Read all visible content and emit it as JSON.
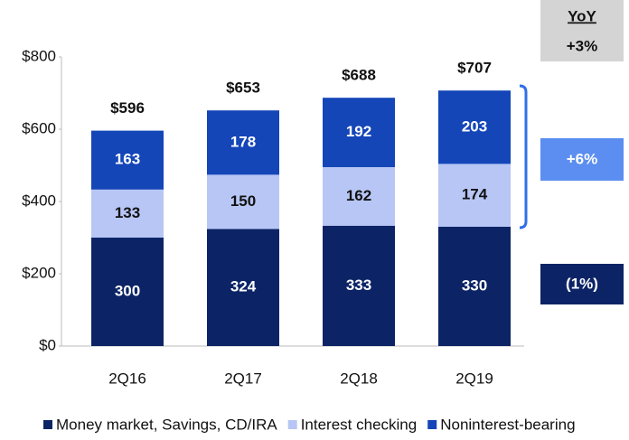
{
  "chart_data": {
    "type": "stacked_bar",
    "categories": [
      "2Q16",
      "2Q17",
      "2Q18",
      "2Q19"
    ],
    "series": [
      {
        "name": "Money market, Savings, CD/IRA",
        "color": "#0c2466",
        "values": [
          300,
          324,
          333,
          330
        ]
      },
      {
        "name": "Interest checking",
        "color": "#b7c6f4",
        "values": [
          133,
          150,
          162,
          174
        ]
      },
      {
        "name": "Noninterest-bearing",
        "color": "#1446b8",
        "values": [
          163,
          178,
          192,
          203
        ]
      }
    ],
    "totals": {
      "values": [
        596,
        653,
        688,
        707
      ],
      "value_labels": [
        "$596",
        "$653",
        "$688",
        "$707"
      ]
    },
    "ylim": [
      0,
      800
    ],
    "yticks": [
      {
        "value": 0,
        "label": "$0"
      },
      {
        "value": 200,
        "label": "$200"
      },
      {
        "value": 400,
        "label": "$400"
      },
      {
        "value": 600,
        "label": "$600"
      },
      {
        "value": 800,
        "label": "$800"
      }
    ],
    "legend": "bottom",
    "annotations": {
      "header": "YoY",
      "total_change": "+3%",
      "upper_change": "+6%",
      "lower_change": "(1%)"
    }
  }
}
